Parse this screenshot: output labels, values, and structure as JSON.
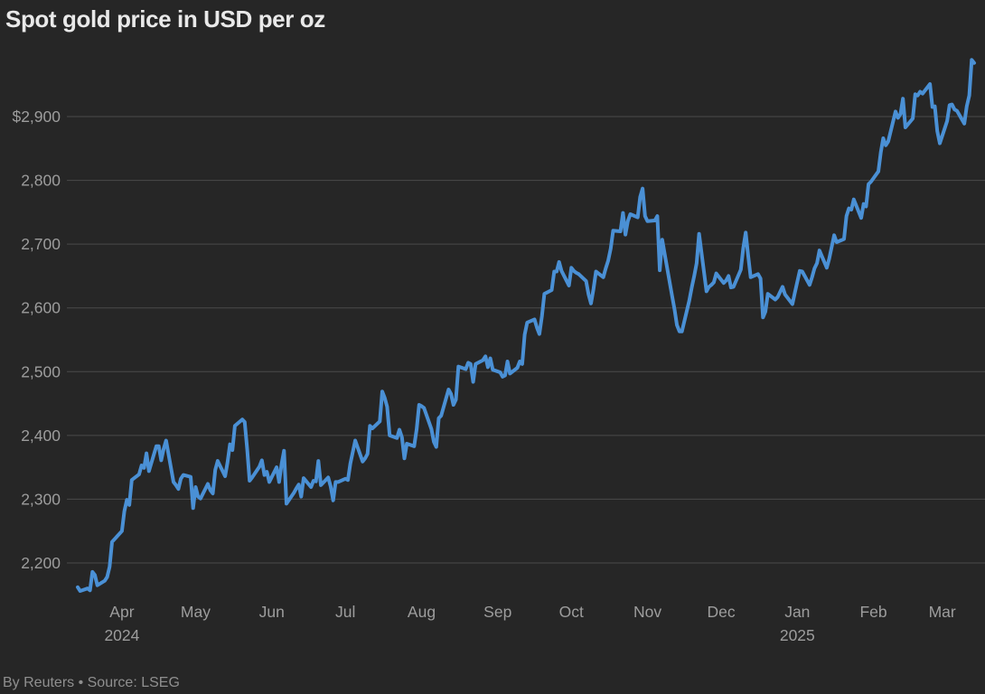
{
  "chart_data": {
    "type": "line",
    "title": "Spot gold price in USD per oz",
    "xlabel": "",
    "ylabel": "USD per oz",
    "grid": "horizontal",
    "legend": "none",
    "ylim": [
      2140,
      2995
    ],
    "xrange": [
      "2024-03-14",
      "2025-03-14"
    ],
    "yticks": [
      {
        "label": "$2,900",
        "value": 2900
      },
      {
        "label": "2,800",
        "value": 2800
      },
      {
        "label": "2,700",
        "value": 2700
      },
      {
        "label": "2,600",
        "value": 2600
      },
      {
        "label": "2,500",
        "value": 2500
      },
      {
        "label": "2,400",
        "value": 2400
      },
      {
        "label": "2,300",
        "value": 2300
      },
      {
        "label": "2,200",
        "value": 2200
      }
    ],
    "xticks": [
      {
        "label": "Apr",
        "year": "2024",
        "date": "2024-04-01"
      },
      {
        "label": "May",
        "date": "2024-05-01"
      },
      {
        "label": "Jun",
        "date": "2024-06-01"
      },
      {
        "label": "Jul",
        "date": "2024-07-01"
      },
      {
        "label": "Aug",
        "date": "2024-08-01"
      },
      {
        "label": "Sep",
        "date": "2024-09-01"
      },
      {
        "label": "Oct",
        "date": "2024-10-01"
      },
      {
        "label": "Nov",
        "date": "2024-11-01"
      },
      {
        "label": "Dec",
        "date": "2024-12-01"
      },
      {
        "label": "Jan",
        "year": "2025",
        "date": "2025-01-01"
      },
      {
        "label": "Feb",
        "date": "2025-02-01"
      },
      {
        "label": "Mar",
        "date": "2025-03-01"
      }
    ],
    "series": [
      {
        "name": "Spot gold price",
        "color": "#4a90d5",
        "points": [
          [
            "2024-03-14",
            2162
          ],
          [
            "2024-03-15",
            2156
          ],
          [
            "2024-03-18",
            2160
          ],
          [
            "2024-03-19",
            2157
          ],
          [
            "2024-03-20",
            2186
          ],
          [
            "2024-03-21",
            2181
          ],
          [
            "2024-03-22",
            2165
          ],
          [
            "2024-03-25",
            2172
          ],
          [
            "2024-03-26",
            2178
          ],
          [
            "2024-03-27",
            2194
          ],
          [
            "2024-03-28",
            2233
          ],
          [
            "2024-04-01",
            2250
          ],
          [
            "2024-04-02",
            2281
          ],
          [
            "2024-04-03",
            2299
          ],
          [
            "2024-04-04",
            2291
          ],
          [
            "2024-04-05",
            2330
          ],
          [
            "2024-04-08",
            2339
          ],
          [
            "2024-04-09",
            2353
          ],
          [
            "2024-04-10",
            2349
          ],
          [
            "2024-04-11",
            2372
          ],
          [
            "2024-04-12",
            2344
          ],
          [
            "2024-04-15",
            2383
          ],
          [
            "2024-04-16",
            2383
          ],
          [
            "2024-04-17",
            2361
          ],
          [
            "2024-04-18",
            2379
          ],
          [
            "2024-04-19",
            2392
          ],
          [
            "2024-04-22",
            2327
          ],
          [
            "2024-04-23",
            2322
          ],
          [
            "2024-04-24",
            2316
          ],
          [
            "2024-04-25",
            2332
          ],
          [
            "2024-04-26",
            2338
          ],
          [
            "2024-04-29",
            2335
          ],
          [
            "2024-04-30",
            2286
          ],
          [
            "2024-05-01",
            2319
          ],
          [
            "2024-05-02",
            2304
          ],
          [
            "2024-05-03",
            2301
          ],
          [
            "2024-05-06",
            2324
          ],
          [
            "2024-05-07",
            2314
          ],
          [
            "2024-05-08",
            2309
          ],
          [
            "2024-05-09",
            2346
          ],
          [
            "2024-05-10",
            2360
          ],
          [
            "2024-05-13",
            2336
          ],
          [
            "2024-05-14",
            2358
          ],
          [
            "2024-05-15",
            2386
          ],
          [
            "2024-05-16",
            2377
          ],
          [
            "2024-05-17",
            2415
          ],
          [
            "2024-05-20",
            2425
          ],
          [
            "2024-05-21",
            2421
          ],
          [
            "2024-05-22",
            2379
          ],
          [
            "2024-05-23",
            2329
          ],
          [
            "2024-05-24",
            2334
          ],
          [
            "2024-05-27",
            2351
          ],
          [
            "2024-05-28",
            2361
          ],
          [
            "2024-05-29",
            2338
          ],
          [
            "2024-05-30",
            2343
          ],
          [
            "2024-05-31",
            2327
          ],
          [
            "2024-06-03",
            2350
          ],
          [
            "2024-06-04",
            2327
          ],
          [
            "2024-06-05",
            2355
          ],
          [
            "2024-06-06",
            2376
          ],
          [
            "2024-06-07",
            2293
          ],
          [
            "2024-06-10",
            2310
          ],
          [
            "2024-06-11",
            2317
          ],
          [
            "2024-06-12",
            2323
          ],
          [
            "2024-06-13",
            2304
          ],
          [
            "2024-06-14",
            2333
          ],
          [
            "2024-06-17",
            2319
          ],
          [
            "2024-06-18",
            2329
          ],
          [
            "2024-06-19",
            2328
          ],
          [
            "2024-06-20",
            2360
          ],
          [
            "2024-06-21",
            2322
          ],
          [
            "2024-06-24",
            2334
          ],
          [
            "2024-06-25",
            2320
          ],
          [
            "2024-06-26",
            2298
          ],
          [
            "2024-06-27",
            2327
          ],
          [
            "2024-06-28",
            2327
          ],
          [
            "2024-07-01",
            2332
          ],
          [
            "2024-07-02",
            2330
          ],
          [
            "2024-07-03",
            2356
          ],
          [
            "2024-07-05",
            2392
          ],
          [
            "2024-07-08",
            2359
          ],
          [
            "2024-07-09",
            2364
          ],
          [
            "2024-07-10",
            2371
          ],
          [
            "2024-07-11",
            2415
          ],
          [
            "2024-07-12",
            2411
          ],
          [
            "2024-07-15",
            2422
          ],
          [
            "2024-07-16",
            2469
          ],
          [
            "2024-07-17",
            2459
          ],
          [
            "2024-07-18",
            2445
          ],
          [
            "2024-07-19",
            2400
          ],
          [
            "2024-07-22",
            2396
          ],
          [
            "2024-07-23",
            2409
          ],
          [
            "2024-07-24",
            2397
          ],
          [
            "2024-07-25",
            2364
          ],
          [
            "2024-07-26",
            2387
          ],
          [
            "2024-07-29",
            2383
          ],
          [
            "2024-07-30",
            2410
          ],
          [
            "2024-07-31",
            2448
          ],
          [
            "2024-08-01",
            2446
          ],
          [
            "2024-08-02",
            2443
          ],
          [
            "2024-08-05",
            2410
          ],
          [
            "2024-08-06",
            2390
          ],
          [
            "2024-08-07",
            2382
          ],
          [
            "2024-08-08",
            2427
          ],
          [
            "2024-08-09",
            2431
          ],
          [
            "2024-08-12",
            2472
          ],
          [
            "2024-08-13",
            2465
          ],
          [
            "2024-08-14",
            2448
          ],
          [
            "2024-08-15",
            2456
          ],
          [
            "2024-08-16",
            2508
          ],
          [
            "2024-08-19",
            2504
          ],
          [
            "2024-08-20",
            2514
          ],
          [
            "2024-08-21",
            2512
          ],
          [
            "2024-08-22",
            2484
          ],
          [
            "2024-08-23",
            2512
          ],
          [
            "2024-08-26",
            2518
          ],
          [
            "2024-08-27",
            2524
          ],
          [
            "2024-08-28",
            2507
          ],
          [
            "2024-08-29",
            2521
          ],
          [
            "2024-08-30",
            2503
          ],
          [
            "2024-09-02",
            2499
          ],
          [
            "2024-09-03",
            2492
          ],
          [
            "2024-09-04",
            2494
          ],
          [
            "2024-09-05",
            2516
          ],
          [
            "2024-09-06",
            2497
          ],
          [
            "2024-09-09",
            2506
          ],
          [
            "2024-09-10",
            2516
          ],
          [
            "2024-09-11",
            2512
          ],
          [
            "2024-09-12",
            2558
          ],
          [
            "2024-09-13",
            2577
          ],
          [
            "2024-09-16",
            2582
          ],
          [
            "2024-09-17",
            2569
          ],
          [
            "2024-09-18",
            2559
          ],
          [
            "2024-09-19",
            2587
          ],
          [
            "2024-09-20",
            2622
          ],
          [
            "2024-09-23",
            2628
          ],
          [
            "2024-09-24",
            2657
          ],
          [
            "2024-09-25",
            2657
          ],
          [
            "2024-09-26",
            2672
          ],
          [
            "2024-09-27",
            2658
          ],
          [
            "2024-09-30",
            2635
          ],
          [
            "2024-10-01",
            2663
          ],
          [
            "2024-10-02",
            2658
          ],
          [
            "2024-10-03",
            2655
          ],
          [
            "2024-10-04",
            2653
          ],
          [
            "2024-10-07",
            2642
          ],
          [
            "2024-10-08",
            2621
          ],
          [
            "2024-10-09",
            2607
          ],
          [
            "2024-10-10",
            2629
          ],
          [
            "2024-10-11",
            2657
          ],
          [
            "2024-10-14",
            2648
          ],
          [
            "2024-10-15",
            2662
          ],
          [
            "2024-10-16",
            2674
          ],
          [
            "2024-10-17",
            2693
          ],
          [
            "2024-10-18",
            2721
          ],
          [
            "2024-10-21",
            2720
          ],
          [
            "2024-10-22",
            2749
          ],
          [
            "2024-10-23",
            2715
          ],
          [
            "2024-10-24",
            2736
          ],
          [
            "2024-10-25",
            2747
          ],
          [
            "2024-10-28",
            2742
          ],
          [
            "2024-10-29",
            2774
          ],
          [
            "2024-10-30",
            2787
          ],
          [
            "2024-10-31",
            2744
          ],
          [
            "2024-11-01",
            2736
          ],
          [
            "2024-11-04",
            2737
          ],
          [
            "2024-11-05",
            2744
          ],
          [
            "2024-11-06",
            2659
          ],
          [
            "2024-11-07",
            2707
          ],
          [
            "2024-11-08",
            2684
          ],
          [
            "2024-11-11",
            2619
          ],
          [
            "2024-11-12",
            2598
          ],
          [
            "2024-11-13",
            2573
          ],
          [
            "2024-11-14",
            2563
          ],
          [
            "2024-11-15",
            2563
          ],
          [
            "2024-11-18",
            2611
          ],
          [
            "2024-11-19",
            2632
          ],
          [
            "2024-11-20",
            2650
          ],
          [
            "2024-11-21",
            2670
          ],
          [
            "2024-11-22",
            2716
          ],
          [
            "2024-11-25",
            2626
          ],
          [
            "2024-11-26",
            2633
          ],
          [
            "2024-11-27",
            2636
          ],
          [
            "2024-11-28",
            2640
          ],
          [
            "2024-11-29",
            2654
          ],
          [
            "2024-12-02",
            2639
          ],
          [
            "2024-12-03",
            2643
          ],
          [
            "2024-12-04",
            2650
          ],
          [
            "2024-12-05",
            2632
          ],
          [
            "2024-12-06",
            2633
          ],
          [
            "2024-12-09",
            2660
          ],
          [
            "2024-12-10",
            2694
          ],
          [
            "2024-12-11",
            2718
          ],
          [
            "2024-12-12",
            2681
          ],
          [
            "2024-12-13",
            2648
          ],
          [
            "2024-12-16",
            2653
          ],
          [
            "2024-12-17",
            2646
          ],
          [
            "2024-12-18",
            2585
          ],
          [
            "2024-12-19",
            2594
          ],
          [
            "2024-12-20",
            2622
          ],
          [
            "2024-12-23",
            2613
          ],
          [
            "2024-12-24",
            2617
          ],
          [
            "2024-12-26",
            2633
          ],
          [
            "2024-12-27",
            2621
          ],
          [
            "2024-12-30",
            2606
          ],
          [
            "2024-12-31",
            2624
          ],
          [
            "2025-01-02",
            2658
          ],
          [
            "2025-01-03",
            2657
          ],
          [
            "2025-01-06",
            2636
          ],
          [
            "2025-01-07",
            2648
          ],
          [
            "2025-01-08",
            2662
          ],
          [
            "2025-01-09",
            2670
          ],
          [
            "2025-01-10",
            2690
          ],
          [
            "2025-01-13",
            2663
          ],
          [
            "2025-01-14",
            2677
          ],
          [
            "2025-01-15",
            2696
          ],
          [
            "2025-01-16",
            2714
          ],
          [
            "2025-01-17",
            2703
          ],
          [
            "2025-01-20",
            2708
          ],
          [
            "2025-01-21",
            2744
          ],
          [
            "2025-01-22",
            2756
          ],
          [
            "2025-01-23",
            2754
          ],
          [
            "2025-01-24",
            2770
          ],
          [
            "2025-01-27",
            2741
          ],
          [
            "2025-01-28",
            2763
          ],
          [
            "2025-01-29",
            2759
          ],
          [
            "2025-01-30",
            2794
          ],
          [
            "2025-01-31",
            2798
          ],
          [
            "2025-02-03",
            2814
          ],
          [
            "2025-02-04",
            2844
          ],
          [
            "2025-02-05",
            2866
          ],
          [
            "2025-02-06",
            2855
          ],
          [
            "2025-02-07",
            2861
          ],
          [
            "2025-02-10",
            2908
          ],
          [
            "2025-02-11",
            2898
          ],
          [
            "2025-02-12",
            2904
          ],
          [
            "2025-02-13",
            2928
          ],
          [
            "2025-02-14",
            2883
          ],
          [
            "2025-02-17",
            2897
          ],
          [
            "2025-02-18",
            2935
          ],
          [
            "2025-02-19",
            2933
          ],
          [
            "2025-02-20",
            2939
          ],
          [
            "2025-02-21",
            2936
          ],
          [
            "2025-02-24",
            2951
          ],
          [
            "2025-02-25",
            2915
          ],
          [
            "2025-02-26",
            2916
          ],
          [
            "2025-02-27",
            2877
          ],
          [
            "2025-02-28",
            2858
          ],
          [
            "2025-03-03",
            2893
          ],
          [
            "2025-03-04",
            2918
          ],
          [
            "2025-03-05",
            2919
          ],
          [
            "2025-03-06",
            2911
          ],
          [
            "2025-03-07",
            2909
          ],
          [
            "2025-03-10",
            2889
          ],
          [
            "2025-03-11",
            2916
          ],
          [
            "2025-03-12",
            2933
          ],
          [
            "2025-03-13",
            2989
          ],
          [
            "2025-03-14",
            2984
          ]
        ]
      }
    ]
  },
  "footer": {
    "credit": "By Reuters • Source: LSEG"
  },
  "colors": {
    "background": "#262626",
    "line": "#4a90d5",
    "grid": "#4a4a4a",
    "title_text": "#e9e9e9",
    "axis_text": "#9d9d9d",
    "footer_text": "#8f8f8f"
  }
}
